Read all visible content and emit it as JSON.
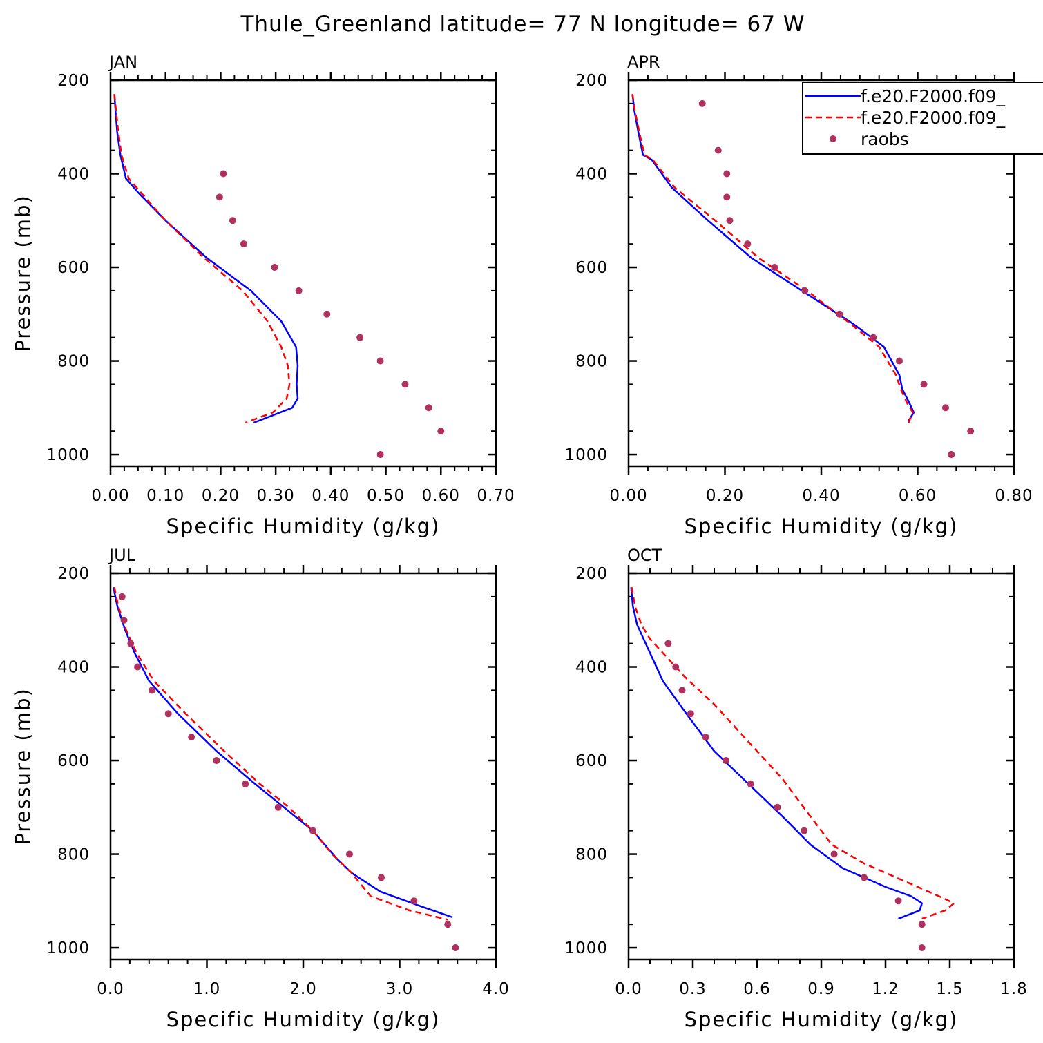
{
  "title": "Thule_Greenland  latitude= 77 N longitude= 67 W",
  "legend": {
    "entries": [
      {
        "label": "f.e20.F2000.f09_",
        "style": "solid",
        "color": "#0000ff"
      },
      {
        "label": "f.e20.F2000.f09_",
        "style": "dashed",
        "color": "#ff0000"
      },
      {
        "label": "raobs",
        "style": "marker",
        "color": "#b03060"
      }
    ]
  },
  "chart_data": [
    {
      "type": "line",
      "panel": "JAN",
      "xlabel": "Specific Humidity (g/kg)",
      "ylabel": "Pressure (mb)",
      "xlim": [
        0,
        0.7
      ],
      "ylim": [
        200,
        1025
      ],
      "x_ticks": [
        "0.00",
        "0.10",
        "0.20",
        "0.30",
        "0.40",
        "0.50",
        "0.60",
        "0.70"
      ],
      "y_ticks": [
        "200",
        "400",
        "600",
        "800",
        "1000"
      ],
      "series": [
        {
          "name": "f.e20.F2000.f09_",
          "style": "solid",
          "color": "#0000ff",
          "x": [
            0.007,
            0.009,
            0.012,
            0.018,
            0.028,
            0.05,
            0.1,
            0.175,
            0.255,
            0.31,
            0.337,
            0.34,
            0.338,
            0.34,
            0.33,
            0.26
          ],
          "y": [
            230,
            265,
            310,
            360,
            410,
            440,
            500,
            580,
            650,
            715,
            770,
            810,
            850,
            880,
            900,
            932
          ]
        },
        {
          "name": "f.e20.F2000.f09_",
          "style": "dashed",
          "color": "#ff0000",
          "x": [
            0.007,
            0.01,
            0.014,
            0.02,
            0.033,
            0.055,
            0.1,
            0.17,
            0.24,
            0.285,
            0.31,
            0.322,
            0.325,
            0.32,
            0.295,
            0.245
          ],
          "y": [
            230,
            265,
            310,
            360,
            410,
            440,
            500,
            580,
            650,
            715,
            770,
            810,
            850,
            880,
            910,
            932
          ]
        },
        {
          "name": "raobs",
          "style": "marker",
          "color": "#b03060",
          "x": [
            0.205,
            0.198,
            0.222,
            0.242,
            0.298,
            0.342,
            0.393,
            0.453,
            0.49,
            0.535,
            0.578,
            0.6,
            0.49
          ],
          "y": [
            400,
            450,
            500,
            550,
            600,
            650,
            700,
            750,
            800,
            850,
            900,
            950,
            1000
          ]
        }
      ]
    },
    {
      "type": "line",
      "panel": "APR",
      "xlabel": "Specific Humidity (g/kg)",
      "ylabel": "",
      "xlim": [
        0,
        0.8
      ],
      "ylim": [
        200,
        1025
      ],
      "x_ticks": [
        "0.00",
        "0.20",
        "0.40",
        "0.60",
        "0.80"
      ],
      "y_ticks": [
        "200",
        "400",
        "600",
        "800",
        "1000"
      ],
      "series": [
        {
          "name": "f.e20.F2000.f09_",
          "style": "solid",
          "color": "#0000ff",
          "x": [
            0.008,
            0.012,
            0.02,
            0.03,
            0.048,
            0.09,
            0.165,
            0.255,
            0.36,
            0.465,
            0.53,
            0.562,
            0.568,
            0.583,
            0.592,
            0.58
          ],
          "y": [
            230,
            265,
            310,
            360,
            370,
            430,
            500,
            580,
            650,
            720,
            770,
            830,
            860,
            890,
            910,
            930
          ]
        },
        {
          "name": "f.e20.F2000.f09_",
          "style": "dashed",
          "color": "#ff0000",
          "x": [
            0.008,
            0.013,
            0.022,
            0.033,
            0.05,
            0.096,
            0.18,
            0.27,
            0.37,
            0.46,
            0.52,
            0.555,
            0.565,
            0.578,
            0.59,
            0.578
          ],
          "y": [
            230,
            265,
            310,
            360,
            370,
            430,
            500,
            580,
            650,
            720,
            770,
            830,
            860,
            890,
            910,
            940
          ]
        },
        {
          "name": "raobs",
          "style": "marker",
          "color": "#b03060",
          "x": [
            0.153,
            0.186,
            0.204,
            0.204,
            0.21,
            0.247,
            0.303,
            0.366,
            0.438,
            0.508,
            0.562,
            0.613,
            0.658,
            0.71,
            0.67
          ],
          "y": [
            250,
            350,
            400,
            450,
            500,
            550,
            600,
            650,
            700,
            750,
            800,
            850,
            900,
            950,
            1000
          ]
        }
      ]
    },
    {
      "type": "line",
      "panel": "JUL",
      "xlabel": "Specific Humidity (g/kg)",
      "ylabel": "Pressure (mb)",
      "xlim": [
        0,
        4.0
      ],
      "ylim": [
        200,
        1025
      ],
      "x_ticks": [
        "0.0",
        "1.0",
        "2.0",
        "3.0",
        "4.0"
      ],
      "y_ticks": [
        "200",
        "400",
        "600",
        "800",
        "1000"
      ],
      "series": [
        {
          "name": "f.e20.F2000.f09_",
          "style": "solid",
          "color": "#0000ff",
          "x": [
            0.03,
            0.07,
            0.15,
            0.25,
            0.4,
            0.7,
            1.1,
            1.5,
            1.8,
            2.1,
            2.35,
            2.5,
            2.8,
            3.2,
            3.55
          ],
          "y": [
            230,
            270,
            320,
            370,
            430,
            500,
            580,
            650,
            700,
            750,
            810,
            840,
            880,
            910,
            935
          ]
        },
        {
          "name": "f.e20.F2000.f09_",
          "style": "dashed",
          "color": "#ff0000",
          "x": [
            0.04,
            0.08,
            0.16,
            0.27,
            0.45,
            0.78,
            1.18,
            1.55,
            1.85,
            2.1,
            2.3,
            2.5,
            2.7,
            3.1,
            3.5
          ],
          "y": [
            230,
            270,
            320,
            370,
            430,
            500,
            580,
            650,
            700,
            750,
            800,
            840,
            890,
            920,
            940
          ]
        },
        {
          "name": "raobs",
          "style": "marker",
          "color": "#b03060",
          "x": [
            0.12,
            0.14,
            0.21,
            0.28,
            0.43,
            0.6,
            0.84,
            1.1,
            1.4,
            1.74,
            2.1,
            2.48,
            2.81,
            3.15,
            3.5,
            3.58
          ],
          "y": [
            250,
            300,
            350,
            400,
            450,
            500,
            550,
            600,
            650,
            700,
            750,
            800,
            850,
            900,
            950,
            1000
          ]
        }
      ]
    },
    {
      "type": "line",
      "panel": "OCT",
      "xlabel": "Specific Humidity (g/kg)",
      "ylabel": "",
      "xlim": [
        0,
        1.8
      ],
      "ylim": [
        200,
        1025
      ],
      "x_ticks": [
        "0.0",
        "0.3",
        "0.6",
        "0.9",
        "1.2",
        "1.5",
        "1.8"
      ],
      "y_ticks": [
        "200",
        "400",
        "600",
        "800",
        "1000"
      ],
      "series": [
        {
          "name": "f.e20.F2000.f09_",
          "style": "solid",
          "color": "#0000ff",
          "x": [
            0.012,
            0.02,
            0.04,
            0.07,
            0.1,
            0.16,
            0.27,
            0.4,
            0.56,
            0.72,
            0.85,
            1.0,
            1.2,
            1.32,
            1.37,
            1.36,
            1.26
          ],
          "y": [
            230,
            270,
            310,
            340,
            370,
            430,
            500,
            580,
            650,
            720,
            780,
            830,
            870,
            890,
            905,
            920,
            938
          ]
        },
        {
          "name": "f.e20.F2000.f09_",
          "style": "dashed",
          "color": "#ff0000",
          "x": [
            0.015,
            0.03,
            0.06,
            0.1,
            0.16,
            0.26,
            0.4,
            0.56,
            0.72,
            0.85,
            0.95,
            1.1,
            1.3,
            1.45,
            1.52,
            1.48,
            1.37
          ],
          "y": [
            230,
            270,
            310,
            340,
            370,
            420,
            480,
            560,
            640,
            720,
            780,
            820,
            860,
            890,
            905,
            920,
            938
          ]
        },
        {
          "name": "raobs",
          "style": "marker",
          "color": "#b03060",
          "x": [
            0.185,
            0.22,
            0.25,
            0.29,
            0.36,
            0.455,
            0.57,
            0.695,
            0.82,
            0.96,
            1.1,
            1.26,
            1.37,
            1.37
          ],
          "y": [
            350,
            400,
            450,
            500,
            550,
            600,
            650,
            700,
            750,
            800,
            850,
            900,
            950,
            1000
          ]
        }
      ]
    }
  ]
}
